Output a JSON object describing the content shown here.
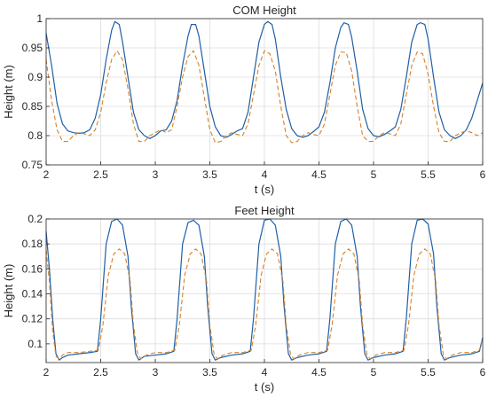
{
  "chart_data": [
    {
      "type": "line",
      "title": "COM Height",
      "xlabel": "t (s)",
      "ylabel": "Height (m)",
      "xlim": [
        2,
        6
      ],
      "ylim": [
        0.75,
        1.0
      ],
      "xticks": [
        2,
        2.5,
        3,
        3.5,
        4,
        4.5,
        5,
        5.5,
        6
      ],
      "xtick_labels": [
        "2",
        "2.5",
        "3",
        "3.5",
        "4",
        "4.5",
        "5",
        "5.5",
        "6"
      ],
      "yticks": [
        0.75,
        0.8,
        0.85,
        0.9,
        0.95,
        1.0
      ],
      "ytick_labels": [
        "0.75",
        "0.8",
        "0.85",
        "0.9",
        "0.95",
        "1"
      ],
      "grid": true,
      "series": [
        {
          "color": "#1f5fa6",
          "style": "solid",
          "x": [
            2.0,
            2.05,
            2.1,
            2.15,
            2.2,
            2.25,
            2.3,
            2.35,
            2.4,
            2.45,
            2.5,
            2.55,
            2.6,
            2.63,
            2.67,
            2.7,
            2.75,
            2.8,
            2.85,
            2.9,
            2.95,
            3.0,
            3.05,
            3.1,
            3.15,
            3.2,
            3.25,
            3.3,
            3.33,
            3.37,
            3.4,
            3.45,
            3.5,
            3.55,
            3.6,
            3.65,
            3.7,
            3.75,
            3.8,
            3.85,
            3.9,
            3.95,
            4.0,
            4.03,
            4.07,
            4.1,
            4.15,
            4.2,
            4.25,
            4.3,
            4.35,
            4.4,
            4.45,
            4.5,
            4.55,
            4.6,
            4.65,
            4.7,
            4.73,
            4.77,
            4.8,
            4.85,
            4.9,
            4.95,
            5.0,
            5.05,
            5.1,
            5.15,
            5.2,
            5.25,
            5.3,
            5.35,
            5.4,
            5.43,
            5.47,
            5.5,
            5.55,
            5.6,
            5.65,
            5.7,
            5.75,
            5.8,
            5.85,
            5.9,
            5.95,
            6.0
          ],
          "y": [
            0.975,
            0.92,
            0.855,
            0.82,
            0.808,
            0.805,
            0.804,
            0.805,
            0.81,
            0.83,
            0.87,
            0.93,
            0.98,
            0.995,
            0.99,
            0.96,
            0.9,
            0.84,
            0.81,
            0.8,
            0.795,
            0.8,
            0.808,
            0.81,
            0.825,
            0.86,
            0.92,
            0.97,
            0.99,
            0.99,
            0.97,
            0.91,
            0.85,
            0.815,
            0.8,
            0.797,
            0.802,
            0.808,
            0.812,
            0.84,
            0.9,
            0.96,
            0.99,
            0.995,
            0.99,
            0.965,
            0.9,
            0.845,
            0.812,
            0.8,
            0.797,
            0.8,
            0.807,
            0.815,
            0.84,
            0.89,
            0.95,
            0.985,
            0.993,
            0.99,
            0.968,
            0.91,
            0.845,
            0.812,
            0.8,
            0.798,
            0.802,
            0.808,
            0.815,
            0.845,
            0.9,
            0.96,
            0.99,
            0.993,
            0.99,
            0.965,
            0.9,
            0.84,
            0.81,
            0.8,
            0.795,
            0.8,
            0.81,
            0.83,
            0.86,
            0.89
          ]
        },
        {
          "color": "#d4822a",
          "style": "dashed",
          "x": [
            2.0,
            2.05,
            2.1,
            2.15,
            2.2,
            2.25,
            2.3,
            2.35,
            2.4,
            2.45,
            2.5,
            2.55,
            2.6,
            2.65,
            2.7,
            2.75,
            2.8,
            2.85,
            2.9,
            2.95,
            3.0,
            3.05,
            3.1,
            3.15,
            3.2,
            3.25,
            3.3,
            3.35,
            3.4,
            3.45,
            3.5,
            3.55,
            3.6,
            3.65,
            3.7,
            3.75,
            3.8,
            3.85,
            3.9,
            3.95,
            4.0,
            4.05,
            4.1,
            4.15,
            4.2,
            4.25,
            4.3,
            4.35,
            4.4,
            4.45,
            4.5,
            4.55,
            4.6,
            4.65,
            4.7,
            4.75,
            4.8,
            4.85,
            4.9,
            4.95,
            5.0,
            5.05,
            5.1,
            5.15,
            5.2,
            5.25,
            5.3,
            5.35,
            5.4,
            5.45,
            5.5,
            5.55,
            5.6,
            5.65,
            5.7,
            5.75,
            5.8,
            5.85,
            5.9,
            5.95,
            6.0
          ],
          "y": [
            0.93,
            0.86,
            0.81,
            0.79,
            0.79,
            0.8,
            0.805,
            0.803,
            0.8,
            0.81,
            0.84,
            0.89,
            0.93,
            0.945,
            0.93,
            0.88,
            0.82,
            0.79,
            0.79,
            0.8,
            0.805,
            0.81,
            0.805,
            0.81,
            0.85,
            0.9,
            0.935,
            0.945,
            0.92,
            0.865,
            0.81,
            0.788,
            0.79,
            0.8,
            0.805,
            0.802,
            0.8,
            0.82,
            0.87,
            0.92,
            0.945,
            0.94,
            0.91,
            0.85,
            0.8,
            0.788,
            0.79,
            0.8,
            0.805,
            0.802,
            0.8,
            0.82,
            0.87,
            0.92,
            0.943,
            0.942,
            0.91,
            0.85,
            0.8,
            0.79,
            0.79,
            0.8,
            0.805,
            0.803,
            0.8,
            0.82,
            0.87,
            0.92,
            0.943,
            0.94,
            0.905,
            0.85,
            0.805,
            0.79,
            0.79,
            0.8,
            0.805,
            0.808,
            0.805,
            0.8,
            0.805
          ]
        }
      ]
    },
    {
      "type": "line",
      "title": "Feet Height",
      "xlabel": "t (s)",
      "ylabel": "Height (m)",
      "xlim": [
        2,
        6
      ],
      "ylim": [
        0.085,
        0.2
      ],
      "xticks": [
        2,
        2.5,
        3,
        3.5,
        4,
        4.5,
        5,
        5.5,
        6
      ],
      "xtick_labels": [
        "2",
        "2.5",
        "3",
        "3.5",
        "4",
        "4.5",
        "5",
        "5.5",
        "6"
      ],
      "yticks": [
        0.1,
        0.12,
        0.14,
        0.16,
        0.18,
        0.2
      ],
      "ytick_labels": [
        "0.1",
        "0.12",
        "0.14",
        "0.16",
        "0.18",
        "0.2"
      ],
      "grid": true,
      "series": [
        {
          "color": "#1f5fa6",
          "style": "solid",
          "x": [
            2.0,
            2.03,
            2.06,
            2.09,
            2.12,
            2.15,
            2.2,
            2.3,
            2.4,
            2.47,
            2.5,
            2.55,
            2.6,
            2.65,
            2.7,
            2.75,
            2.78,
            2.82,
            2.85,
            2.9,
            3.0,
            3.1,
            3.17,
            3.2,
            3.25,
            3.3,
            3.35,
            3.4,
            3.45,
            3.48,
            3.52,
            3.55,
            3.6,
            3.7,
            3.8,
            3.87,
            3.9,
            3.95,
            4.0,
            4.05,
            4.1,
            4.15,
            4.18,
            4.22,
            4.25,
            4.3,
            4.4,
            4.5,
            4.57,
            4.6,
            4.65,
            4.7,
            4.75,
            4.8,
            4.85,
            4.88,
            4.92,
            4.95,
            5.0,
            5.1,
            5.2,
            5.27,
            5.3,
            5.35,
            5.4,
            5.45,
            5.5,
            5.55,
            5.58,
            5.62,
            5.65,
            5.7,
            5.8,
            5.9,
            5.97,
            6.0
          ],
          "y": [
            0.19,
            0.16,
            0.12,
            0.092,
            0.087,
            0.089,
            0.091,
            0.092,
            0.093,
            0.094,
            0.12,
            0.18,
            0.198,
            0.2,
            0.195,
            0.17,
            0.13,
            0.092,
            0.087,
            0.09,
            0.091,
            0.092,
            0.094,
            0.12,
            0.18,
            0.197,
            0.199,
            0.195,
            0.17,
            0.13,
            0.092,
            0.087,
            0.089,
            0.091,
            0.092,
            0.094,
            0.12,
            0.18,
            0.199,
            0.2,
            0.195,
            0.17,
            0.13,
            0.092,
            0.087,
            0.089,
            0.091,
            0.092,
            0.094,
            0.12,
            0.18,
            0.198,
            0.2,
            0.195,
            0.17,
            0.13,
            0.092,
            0.087,
            0.089,
            0.091,
            0.092,
            0.094,
            0.12,
            0.18,
            0.199,
            0.2,
            0.196,
            0.172,
            0.13,
            0.092,
            0.087,
            0.089,
            0.091,
            0.092,
            0.094,
            0.105
          ]
        },
        {
          "color": "#d4822a",
          "style": "dashed",
          "x": [
            2.0,
            2.03,
            2.06,
            2.09,
            2.12,
            2.15,
            2.2,
            2.3,
            2.4,
            2.48,
            2.52,
            2.57,
            2.62,
            2.67,
            2.72,
            2.77,
            2.8,
            2.84,
            2.87,
            2.92,
            3.0,
            3.1,
            3.18,
            3.22,
            3.27,
            3.32,
            3.37,
            3.42,
            3.47,
            3.5,
            3.54,
            3.57,
            3.62,
            3.7,
            3.8,
            3.88,
            3.92,
            3.97,
            4.02,
            4.07,
            4.12,
            4.17,
            4.2,
            4.24,
            4.27,
            4.32,
            4.4,
            4.5,
            4.58,
            4.62,
            4.67,
            4.72,
            4.77,
            4.82,
            4.87,
            4.9,
            4.94,
            4.97,
            5.02,
            5.1,
            5.2,
            5.28,
            5.32,
            5.37,
            5.42,
            5.47,
            5.52,
            5.57,
            5.6,
            5.64,
            5.67,
            5.72,
            5.8,
            5.9,
            5.97,
            6.0
          ],
          "y": [
            0.175,
            0.15,
            0.11,
            0.09,
            0.088,
            0.091,
            0.093,
            0.093,
            0.094,
            0.095,
            0.115,
            0.155,
            0.172,
            0.176,
            0.172,
            0.15,
            0.115,
            0.091,
            0.088,
            0.091,
            0.093,
            0.093,
            0.095,
            0.115,
            0.155,
            0.172,
            0.176,
            0.172,
            0.15,
            0.115,
            0.091,
            0.088,
            0.091,
            0.093,
            0.093,
            0.095,
            0.115,
            0.155,
            0.172,
            0.176,
            0.172,
            0.15,
            0.115,
            0.091,
            0.088,
            0.091,
            0.093,
            0.093,
            0.095,
            0.115,
            0.155,
            0.172,
            0.176,
            0.172,
            0.15,
            0.115,
            0.091,
            0.088,
            0.091,
            0.093,
            0.093,
            0.095,
            0.115,
            0.155,
            0.172,
            0.176,
            0.172,
            0.15,
            0.115,
            0.091,
            0.088,
            0.091,
            0.093,
            0.093,
            0.095,
            0.105
          ]
        }
      ]
    }
  ]
}
